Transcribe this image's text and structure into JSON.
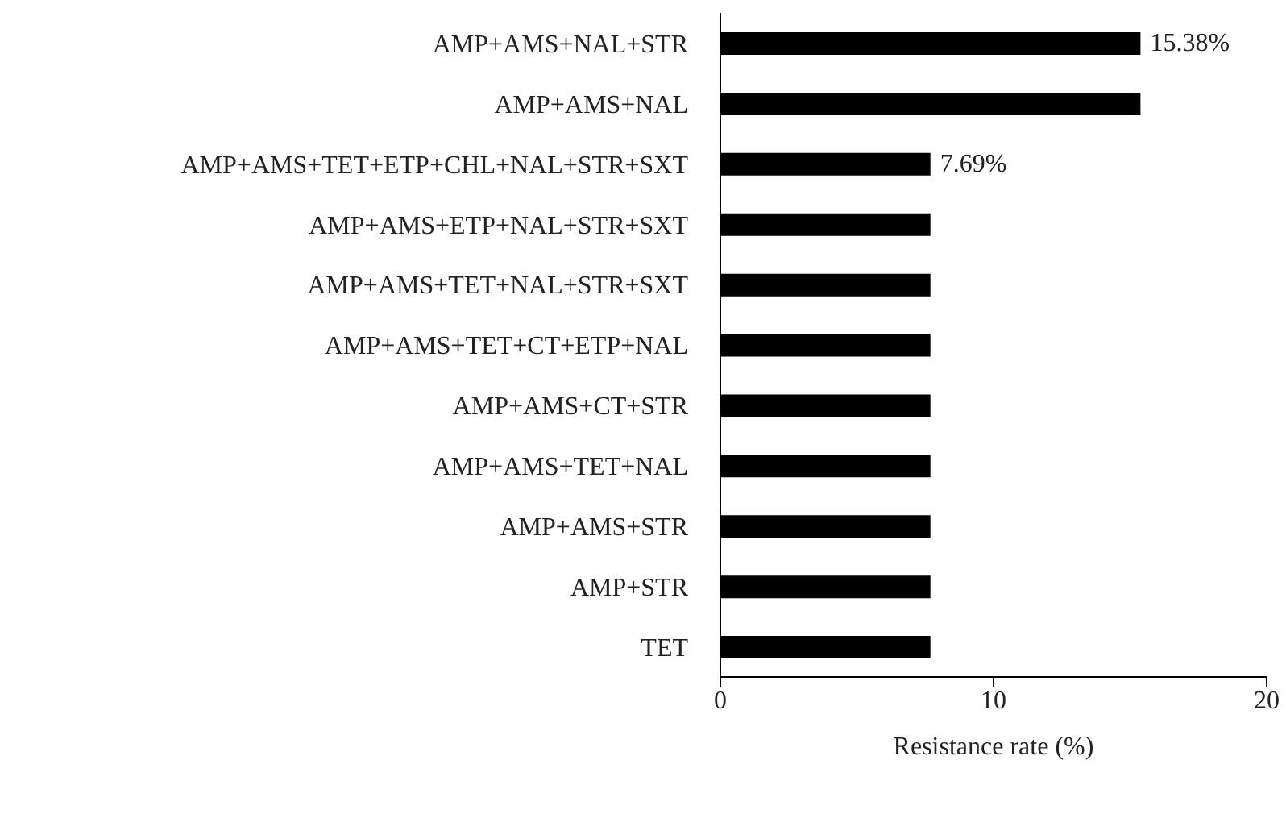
{
  "chart_data": {
    "type": "bar",
    "orientation": "horizontal",
    "xlabel": "Resistance rate (%)",
    "categories": [
      "AMP+AMS+NAL+STR",
      "AMP+AMS+NAL",
      "AMP+AMS+TET+ETP+CHL+NAL+STR+SXT",
      "AMP+AMS+ETP+NAL+STR+SXT",
      "AMP+AMS+TET+NAL+STR+SXT",
      "AMP+AMS+TET+CT+ETP+NAL",
      "AMP+AMS+CT+STR",
      "AMP+AMS+TET+NAL",
      "AMP+AMS+STR",
      "AMP+STR",
      "TET"
    ],
    "values": [
      15.38,
      15.38,
      7.69,
      7.69,
      7.69,
      7.69,
      7.69,
      7.69,
      7.69,
      7.69,
      7.69
    ],
    "value_labels": [
      "15.38%",
      null,
      "7.69%",
      null,
      null,
      null,
      null,
      null,
      null,
      null,
      null
    ],
    "color": "#000000",
    "xlim": [
      0,
      20
    ],
    "xticks": [
      0,
      10,
      20
    ],
    "grid": false,
    "legend": false
  }
}
